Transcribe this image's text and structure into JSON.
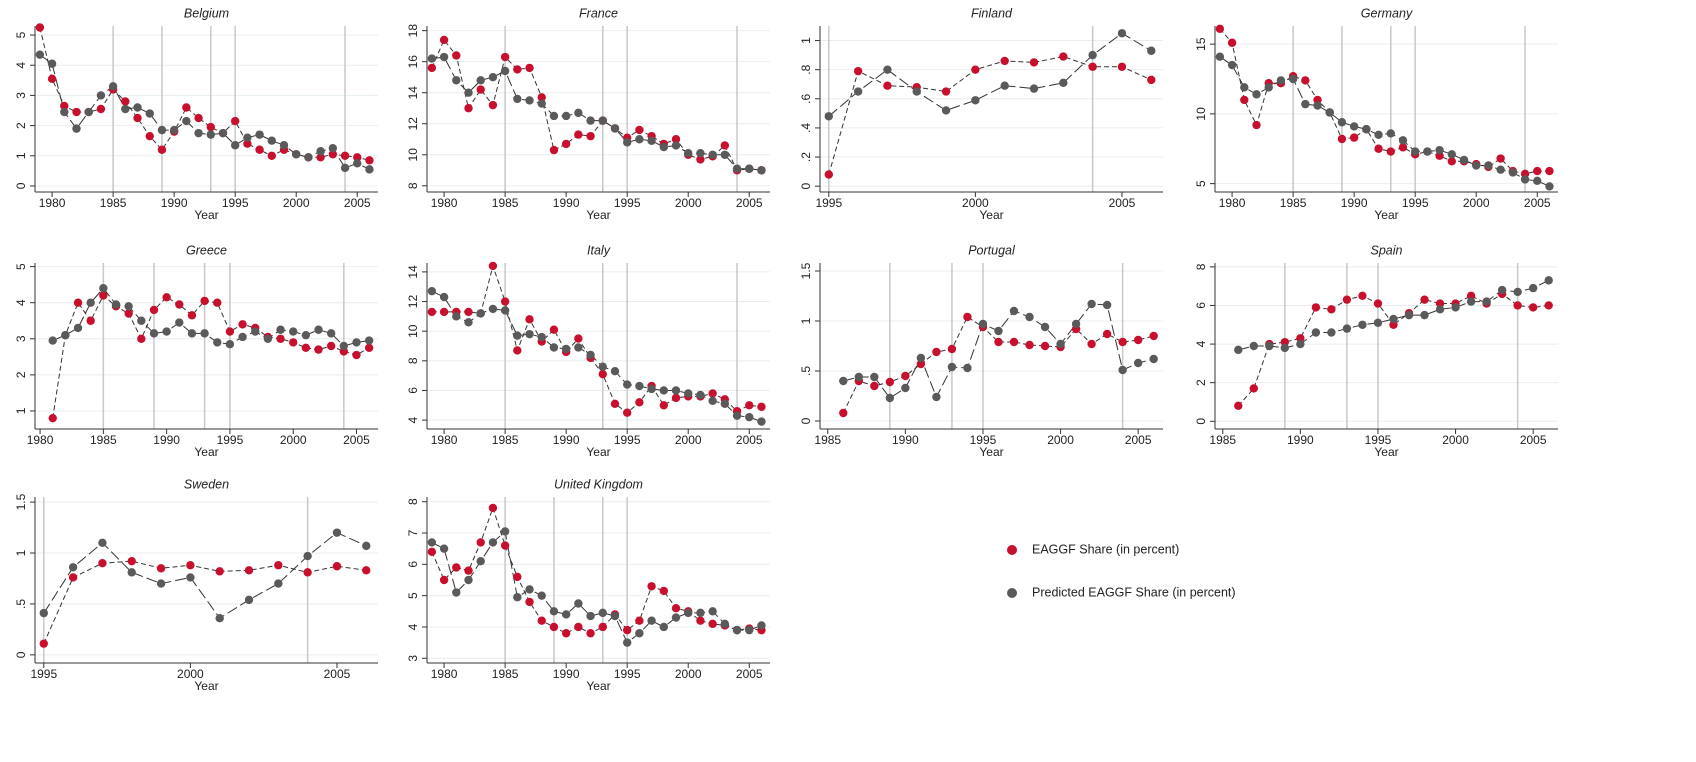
{
  "chart_data": [
    {
      "type": "line",
      "title": "Belgium",
      "xlabel": "Year",
      "x": [
        1979,
        1980,
        1981,
        1982,
        1983,
        1984,
        1985,
        1986,
        1987,
        1988,
        1989,
        1990,
        1991,
        1992,
        1993,
        1994,
        1995,
        1996,
        1997,
        1998,
        1999,
        2000,
        2001,
        2002,
        2003,
        2004,
        2005,
        2006
      ],
      "series": [
        {
          "values": [
            5.25,
            3.55,
            2.65,
            2.45,
            2.45,
            2.55,
            3.2,
            2.8,
            2.25,
            1.65,
            1.2,
            1.8,
            2.6,
            2.25,
            1.95,
            1.75,
            2.15,
            1.4,
            1.2,
            1.0,
            1.2,
            1.05,
            0.95,
            0.95,
            1.05,
            1.0,
            0.95,
            0.85
          ]
        },
        {
          "values": [
            4.35,
            4.05,
            2.45,
            1.9,
            2.45,
            3.0,
            3.3,
            2.55,
            2.6,
            2.4,
            1.85,
            1.85,
            2.15,
            1.75,
            1.7,
            1.75,
            1.35,
            1.6,
            1.7,
            1.5,
            1.35,
            1.05,
            0.95,
            1.15,
            1.25,
            0.6,
            0.75,
            0.55
          ]
        }
      ],
      "xlim": [
        1978.6,
        2006.7
      ],
      "xticks": [
        1980,
        1985,
        1990,
        1995,
        2000,
        2005
      ],
      "ylim": [
        -0.2,
        5.3
      ],
      "yticks": [
        0,
        1,
        2,
        3,
        4,
        5
      ],
      "vlines": [
        1985,
        1989,
        1993,
        1995,
        2004
      ],
      "grid": true
    },
    {
      "type": "line",
      "title": "France",
      "xlabel": "Year",
      "x": [
        1979,
        1980,
        1981,
        1982,
        1983,
        1984,
        1985,
        1986,
        1987,
        1988,
        1989,
        1990,
        1991,
        1992,
        1993,
        1994,
        1995,
        1996,
        1997,
        1998,
        1999,
        2000,
        2001,
        2002,
        2003,
        2004,
        2005,
        2006
      ],
      "series": [
        {
          "values": [
            15.6,
            17.4,
            16.4,
            13.0,
            14.2,
            13.2,
            16.3,
            15.5,
            15.6,
            13.7,
            10.3,
            10.7,
            11.3,
            11.2,
            12.2,
            11.7,
            11.1,
            11.6,
            11.2,
            10.7,
            11.0,
            10.0,
            9.7,
            9.9,
            10.6,
            9.0,
            9.1,
            9.0
          ]
        },
        {
          "values": [
            16.2,
            16.3,
            14.8,
            14.0,
            14.8,
            15.0,
            15.4,
            13.6,
            13.5,
            13.3,
            12.5,
            12.5,
            12.7,
            12.2,
            12.2,
            11.7,
            10.8,
            11.0,
            10.9,
            10.5,
            10.6,
            10.1,
            10.1,
            10.0,
            10.0,
            9.1,
            9.1,
            9.0
          ]
        }
      ],
      "xlim": [
        1978.6,
        2006.7
      ],
      "xticks": [
        1980,
        1985,
        1990,
        1995,
        2000,
        2005
      ],
      "ylim": [
        7.6,
        18.3
      ],
      "yticks": [
        8,
        10,
        12,
        14,
        16,
        18
      ],
      "vlines": [
        1985,
        1993,
        1995,
        2004
      ],
      "grid": true
    },
    {
      "type": "line",
      "title": "Finland",
      "xlabel": "Year",
      "x": [
        1995,
        1996,
        1997,
        1998,
        1999,
        2000,
        2001,
        2002,
        2003,
        2004,
        2005,
        2006
      ],
      "series": [
        {
          "values": [
            0.08,
            0.79,
            0.69,
            0.68,
            0.65,
            0.8,
            0.86,
            0.85,
            0.89,
            0.82,
            0.82,
            0.73
          ]
        },
        {
          "values": [
            0.48,
            0.65,
            0.8,
            0.65,
            0.52,
            0.59,
            0.69,
            0.67,
            0.71,
            0.9,
            1.05,
            0.93
          ]
        }
      ],
      "xlim": [
        1994.7,
        2006.4
      ],
      "xticks": [
        1995,
        2000,
        2005
      ],
      "ylim": [
        -0.04,
        1.1
      ],
      "yticks": [
        0,
        {
          "value": 0.2,
          "label": ".2"
        },
        {
          "value": 0.4,
          "label": ".4"
        },
        {
          "value": 0.6,
          "label": ".6"
        },
        {
          "value": 0.8,
          "label": ".8"
        },
        1
      ],
      "vlines": [
        1995,
        2004
      ],
      "grid": true
    },
    {
      "type": "line",
      "title": "Germany",
      "xlabel": "Year",
      "x": [
        1979,
        1980,
        1981,
        1982,
        1983,
        1984,
        1985,
        1986,
        1987,
        1988,
        1989,
        1990,
        1991,
        1992,
        1993,
        1994,
        1995,
        1996,
        1997,
        1998,
        1999,
        2000,
        2001,
        2002,
        2003,
        2004,
        2005,
        2006
      ],
      "series": [
        {
          "values": [
            16.1,
            15.1,
            11.0,
            9.2,
            12.2,
            12.2,
            12.7,
            12.4,
            11.0,
            10.1,
            8.2,
            8.3,
            8.9,
            7.5,
            7.3,
            7.6,
            7.1,
            7.3,
            7.0,
            6.6,
            6.6,
            6.4,
            6.2,
            6.8,
            5.9,
            5.7,
            5.9,
            5.9
          ]
        },
        {
          "values": [
            14.1,
            13.5,
            11.9,
            11.4,
            11.9,
            12.4,
            12.5,
            10.7,
            10.6,
            10.1,
            9.4,
            9.1,
            8.9,
            8.5,
            8.6,
            8.1,
            7.3,
            7.3,
            7.4,
            7.1,
            6.7,
            6.3,
            6.3,
            6.0,
            5.8,
            5.3,
            5.2,
            4.8
          ]
        }
      ],
      "xlim": [
        1978.6,
        2006.7
      ],
      "xticks": [
        1980,
        1985,
        1990,
        1995,
        2000,
        2005
      ],
      "ylim": [
        4.4,
        16.3
      ],
      "yticks": [
        5,
        10,
        15
      ],
      "vlines": [
        1985,
        1989,
        1993,
        1995,
        2004
      ],
      "grid": true
    },
    {
      "type": "line",
      "title": "Greece",
      "xlabel": "Year",
      "x": [
        1981,
        1982,
        1983,
        1984,
        1985,
        1986,
        1987,
        1988,
        1989,
        1990,
        1991,
        1992,
        1993,
        1994,
        1995,
        1996,
        1997,
        1998,
        1999,
        2000,
        2001,
        2002,
        2003,
        2004,
        2005,
        2006
      ],
      "series": [
        {
          "values": [
            0.8,
            3.1,
            4.0,
            3.5,
            4.2,
            3.9,
            3.7,
            3.0,
            3.8,
            4.15,
            3.95,
            3.65,
            4.05,
            4.0,
            3.2,
            3.4,
            3.3,
            3.05,
            3.0,
            2.9,
            2.75,
            2.7,
            2.8,
            2.65,
            2.55,
            2.75
          ]
        },
        {
          "values": [
            2.95,
            3.1,
            3.3,
            4.0,
            4.4,
            3.95,
            3.9,
            3.5,
            3.15,
            3.2,
            3.45,
            3.15,
            3.15,
            2.9,
            2.85,
            3.05,
            3.2,
            3.0,
            3.25,
            3.2,
            3.1,
            3.25,
            3.15,
            2.8,
            2.9,
            2.95
          ]
        }
      ],
      "xlim": [
        1979.6,
        2006.7
      ],
      "xticks": [
        1980,
        1985,
        1990,
        1995,
        2000,
        2005
      ],
      "ylim": [
        0.5,
        5.1
      ],
      "yticks": [
        1,
        2,
        3,
        4,
        5
      ],
      "vlines": [
        1985,
        1989,
        1993,
        1995,
        2004
      ],
      "grid": true
    },
    {
      "type": "line",
      "title": "Italy",
      "xlabel": "Year",
      "x": [
        1979,
        1980,
        1981,
        1982,
        1983,
        1984,
        1985,
        1986,
        1987,
        1988,
        1989,
        1990,
        1991,
        1992,
        1993,
        1994,
        1995,
        1996,
        1997,
        1998,
        1999,
        2000,
        2001,
        2002,
        2003,
        2004,
        2005,
        2006
      ],
      "series": [
        {
          "values": [
            11.3,
            11.3,
            11.3,
            11.3,
            11.2,
            14.4,
            12.0,
            8.7,
            10.8,
            9.3,
            10.1,
            8.6,
            9.5,
            8.2,
            7.1,
            5.1,
            4.5,
            5.2,
            6.3,
            5.0,
            5.5,
            5.6,
            5.6,
            5.8,
            5.4,
            4.6,
            5.0,
            4.9
          ]
        },
        {
          "values": [
            12.7,
            12.3,
            11.0,
            10.6,
            11.2,
            11.5,
            11.4,
            9.7,
            9.8,
            9.6,
            8.9,
            8.8,
            8.9,
            8.4,
            7.6,
            7.3,
            6.4,
            6.3,
            6.1,
            6.0,
            6.0,
            5.8,
            5.7,
            5.3,
            5.1,
            4.3,
            4.2,
            3.9
          ]
        }
      ],
      "xlim": [
        1978.6,
        2006.7
      ],
      "xticks": [
        1980,
        1985,
        1990,
        1995,
        2000,
        2005
      ],
      "ylim": [
        3.4,
        14.6
      ],
      "yticks": [
        4,
        6,
        8,
        10,
        12,
        14
      ],
      "vlines": [
        1985,
        1993,
        1995,
        2004
      ],
      "grid": true
    },
    {
      "type": "line",
      "title": "Portugal",
      "xlabel": "Year",
      "x": [
        1986,
        1987,
        1988,
        1989,
        1990,
        1991,
        1992,
        1993,
        1994,
        1995,
        1996,
        1997,
        1998,
        1999,
        2000,
        2001,
        2002,
        2003,
        2004,
        2005,
        2006
      ],
      "series": [
        {
          "values": [
            0.08,
            0.4,
            0.35,
            0.39,
            0.45,
            0.57,
            0.69,
            0.72,
            1.04,
            0.94,
            0.79,
            0.79,
            0.76,
            0.75,
            0.74,
            0.92,
            0.77,
            0.87,
            0.79,
            0.81,
            0.85
          ]
        },
        {
          "values": [
            0.4,
            0.44,
            0.44,
            0.23,
            0.33,
            0.63,
            0.24,
            0.54,
            0.53,
            0.97,
            0.9,
            1.1,
            1.04,
            0.94,
            0.77,
            0.97,
            1.17,
            1.16,
            0.51,
            0.58,
            0.62
          ]
        }
      ],
      "xlim": [
        1984.5,
        2006.6
      ],
      "xticks": [
        1985,
        1990,
        1995,
        2000,
        2005
      ],
      "ylim": [
        -0.08,
        1.58
      ],
      "yticks": [
        0,
        {
          "value": 0.5,
          "label": ".5"
        },
        1,
        1.5
      ],
      "vlines": [
        1989,
        1993,
        1995,
        2004
      ],
      "grid": true
    },
    {
      "type": "line",
      "title": "Spain",
      "xlabel": "Year",
      "x": [
        1986,
        1987,
        1988,
        1989,
        1990,
        1991,
        1992,
        1993,
        1994,
        1995,
        1996,
        1997,
        1998,
        1999,
        2000,
        2001,
        2002,
        2003,
        2004,
        2005,
        2006
      ],
      "series": [
        {
          "values": [
            0.8,
            1.7,
            4.0,
            4.1,
            4.3,
            5.9,
            5.8,
            6.3,
            6.5,
            6.1,
            5.0,
            5.6,
            6.3,
            6.1,
            6.1,
            6.5,
            6.1,
            6.6,
            6.0,
            5.9,
            6.0
          ]
        },
        {
          "values": [
            3.7,
            3.9,
            3.9,
            3.8,
            4.0,
            4.6,
            4.6,
            4.8,
            5.0,
            5.1,
            5.3,
            5.5,
            5.5,
            5.8,
            5.9,
            6.2,
            6.2,
            6.8,
            6.7,
            6.9,
            7.3
          ]
        }
      ],
      "xlim": [
        1984.5,
        2006.6
      ],
      "xticks": [
        1985,
        1990,
        1995,
        2000,
        2005
      ],
      "ylim": [
        -0.4,
        8.2
      ],
      "yticks": [
        0,
        2,
        4,
        6,
        8
      ],
      "vlines": [
        1989,
        1993,
        1995,
        2004
      ],
      "grid": true
    },
    {
      "type": "line",
      "title": "Sweden",
      "xlabel": "Year",
      "x": [
        1995,
        1996,
        1997,
        1998,
        1999,
        2000,
        2001,
        2002,
        2003,
        2004,
        2005,
        2006
      ],
      "series": [
        {
          "values": [
            0.11,
            0.76,
            0.9,
            0.92,
            0.85,
            0.88,
            0.82,
            0.83,
            0.88,
            0.81,
            0.87,
            0.83
          ]
        },
        {
          "values": [
            0.41,
            0.86,
            1.1,
            0.81,
            0.7,
            0.76,
            0.36,
            0.54,
            0.7,
            0.97,
            1.2,
            1.07
          ]
        }
      ],
      "xlim": [
        1994.7,
        2006.4
      ],
      "xticks": [
        1995,
        2000,
        2005
      ],
      "ylim": [
        -0.08,
        1.55
      ],
      "yticks": [
        0,
        {
          "value": 0.5,
          "label": ".5"
        },
        1,
        1.5
      ],
      "vlines": [
        1995,
        2004
      ],
      "grid": true
    },
    {
      "type": "line",
      "title": "United Kingdom",
      "xlabel": "Year",
      "x": [
        1979,
        1980,
        1981,
        1982,
        1983,
        1984,
        1985,
        1986,
        1987,
        1988,
        1989,
        1990,
        1991,
        1992,
        1993,
        1994,
        1995,
        1996,
        1997,
        1998,
        1999,
        2000,
        2001,
        2002,
        2003,
        2004,
        2005,
        2006
      ],
      "series": [
        {
          "values": [
            6.4,
            5.5,
            5.9,
            5.8,
            6.7,
            7.8,
            6.6,
            5.6,
            4.8,
            4.2,
            4.0,
            3.8,
            4.0,
            3.8,
            4.0,
            4.4,
            3.9,
            4.2,
            5.3,
            5.15,
            4.6,
            4.5,
            4.2,
            4.1,
            4.05,
            3.9,
            3.95,
            3.9
          ]
        },
        {
          "values": [
            6.7,
            6.5,
            5.1,
            5.5,
            6.1,
            6.7,
            7.05,
            4.95,
            5.2,
            5.0,
            4.5,
            4.4,
            4.75,
            4.35,
            4.45,
            4.35,
            3.5,
            3.8,
            4.2,
            4.0,
            4.3,
            4.45,
            4.45,
            4.5,
            4.1,
            3.9,
            3.9,
            4.05
          ]
        }
      ],
      "xlim": [
        1978.6,
        2006.7
      ],
      "xticks": [
        1980,
        1985,
        1990,
        1995,
        2000,
        2005
      ],
      "ylim": [
        2.85,
        8.15
      ],
      "yticks": [
        3,
        4,
        5,
        6,
        7,
        8
      ],
      "vlines": [
        1985,
        1989,
        1993,
        1995
      ],
      "grid": true
    }
  ],
  "legend": [
    {
      "name": "EAGGF Share (in percent)",
      "color": "#c8102e"
    },
    {
      "name": "Predicted EAGGF Share (in percent)",
      "color": "#5a5a5a"
    }
  ]
}
